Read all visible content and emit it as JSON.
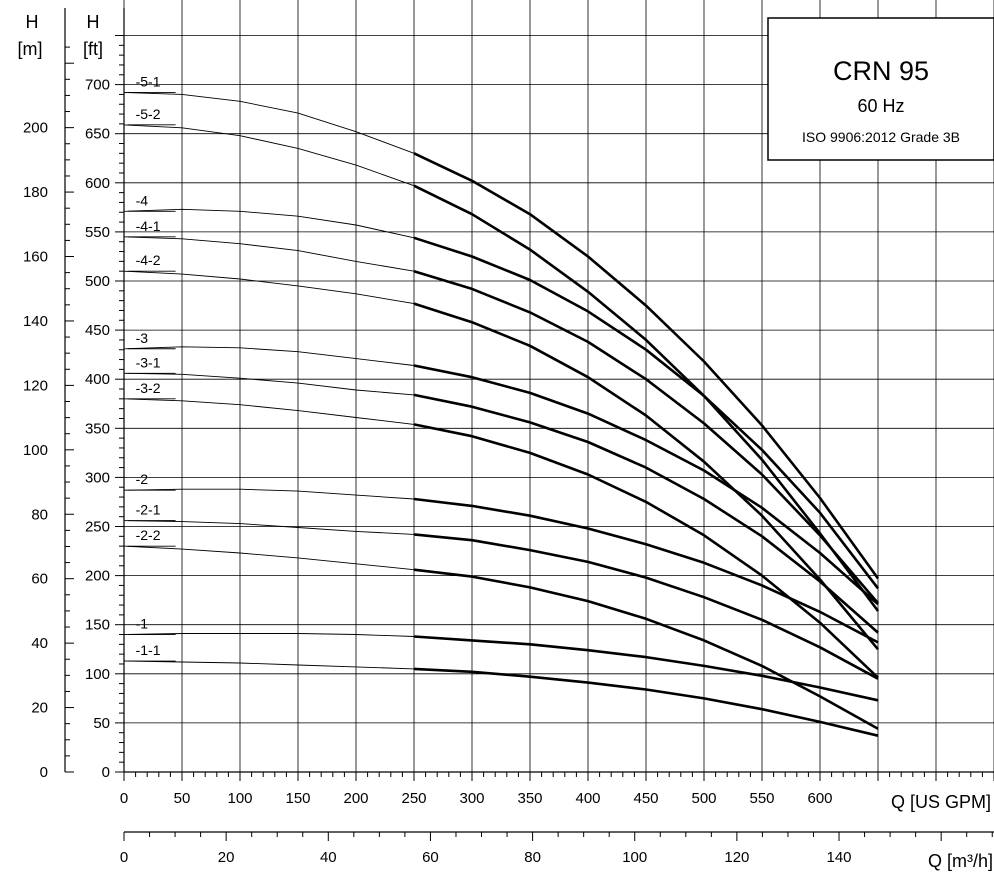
{
  "chart_data": {
    "type": "line",
    "title": "CRN 95",
    "subtitle": "60 Hz",
    "standard": "ISO 9906:2012 Grade 3B",
    "x_axes": {
      "primary": {
        "label": "Q [US GPM]",
        "range": [
          0,
          750
        ],
        "ticks": [
          0,
          50,
          100,
          150,
          200,
          250,
          300,
          350,
          400,
          450,
          500,
          550,
          600
        ]
      },
      "secondary": {
        "label": "Q [m³/h]",
        "range": [
          0,
          170.3
        ],
        "ticks": [
          0,
          20,
          40,
          60,
          80,
          100,
          120,
          140
        ]
      }
    },
    "y_axes": {
      "left_m": {
        "label_top": "H",
        "label_unit": "[m]",
        "range": [
          0,
          228.6
        ],
        "ticks": [
          0,
          20,
          40,
          60,
          80,
          100,
          120,
          140,
          160,
          180,
          200
        ]
      },
      "left_ft": {
        "label_top": "H",
        "label_unit": "[ft]",
        "range": [
          0,
          750
        ],
        "ticks": [
          0,
          50,
          100,
          150,
          200,
          250,
          300,
          350,
          400,
          450,
          500,
          550,
          600,
          650,
          700
        ]
      }
    },
    "grid": true,
    "thin_region_end_gpm": 250,
    "series": [
      {
        "name": "-5-1",
        "x": [
          0,
          50,
          100,
          150,
          200,
          250,
          300,
          350,
          400,
          450,
          500,
          550,
          600,
          650
        ],
        "y": [
          692,
          690,
          683,
          671,
          652,
          630,
          602,
          568,
          525,
          475,
          418,
          353,
          279,
          197
        ]
      },
      {
        "name": "-5-2",
        "x": [
          0,
          50,
          100,
          150,
          200,
          250,
          300,
          350,
          400,
          450,
          500,
          550,
          600,
          650
        ],
        "y": [
          659,
          656,
          648,
          635,
          618,
          597,
          568,
          532,
          489,
          440,
          383,
          318,
          243,
          164
        ]
      },
      {
        "name": "-4",
        "x": [
          0,
          50,
          100,
          150,
          200,
          250,
          300,
          350,
          400,
          450,
          500,
          550,
          600,
          650
        ],
        "y": [
          571,
          573,
          571,
          566,
          557,
          544,
          525,
          501,
          469,
          430,
          383,
          328,
          264,
          187
        ]
      },
      {
        "name": "-4-1",
        "x": [
          0,
          50,
          100,
          150,
          200,
          250,
          300,
          350,
          400,
          450,
          500,
          550,
          600,
          650
        ],
        "y": [
          545,
          543,
          538,
          531,
          520,
          510,
          492,
          468,
          438,
          400,
          355,
          303,
          241,
          172
        ]
      },
      {
        "name": "-4-2",
        "x": [
          0,
          50,
          100,
          150,
          200,
          250,
          300,
          350,
          400,
          450,
          500,
          550,
          600,
          650
        ],
        "y": [
          510,
          507,
          502,
          495,
          487,
          477,
          458,
          434,
          402,
          363,
          316,
          261,
          196,
          125
        ]
      },
      {
        "name": "-3",
        "x": [
          0,
          50,
          100,
          150,
          200,
          250,
          300,
          350,
          400,
          450,
          500,
          550,
          600,
          650
        ],
        "y": [
          431,
          433,
          432,
          428,
          421,
          414,
          402,
          386,
          365,
          338,
          307,
          269,
          223,
          171
        ]
      },
      {
        "name": "-3-1",
        "x": [
          0,
          50,
          100,
          150,
          200,
          250,
          300,
          350,
          400,
          450,
          500,
          550,
          600,
          650
        ],
        "y": [
          406,
          405,
          401,
          396,
          389,
          384,
          372,
          356,
          336,
          310,
          278,
          240,
          194,
          142
        ]
      },
      {
        "name": "-3-2",
        "x": [
          0,
          50,
          100,
          150,
          200,
          250,
          300,
          350,
          400,
          450,
          500,
          550,
          600,
          650
        ],
        "y": [
          380,
          378,
          374,
          368,
          361,
          354,
          342,
          325,
          303,
          275,
          241,
          200,
          152,
          96
        ]
      },
      {
        "name": "-2",
        "x": [
          0,
          50,
          100,
          150,
          200,
          250,
          300,
          350,
          400,
          450,
          500,
          550,
          600,
          650
        ],
        "y": [
          287,
          288,
          288,
          286,
          282,
          278,
          271,
          261,
          248,
          232,
          213,
          190,
          163,
          132
        ]
      },
      {
        "name": "-2-1",
        "x": [
          0,
          50,
          100,
          150,
          200,
          250,
          300,
          350,
          400,
          450,
          500,
          550,
          600,
          650
        ],
        "y": [
          256,
          255,
          253,
          249,
          245,
          242,
          236,
          226,
          214,
          198,
          178,
          155,
          127,
          95
        ]
      },
      {
        "name": "-2-2",
        "x": [
          0,
          50,
          100,
          150,
          200,
          250,
          300,
          350,
          400,
          450,
          500,
          550,
          600,
          650
        ],
        "y": [
          230,
          227,
          223,
          218,
          212,
          206,
          199,
          188,
          174,
          156,
          134,
          108,
          77,
          44
        ]
      },
      {
        "name": "-1",
        "x": [
          0,
          50,
          100,
          150,
          200,
          250,
          300,
          350,
          400,
          450,
          500,
          550,
          600,
          650
        ],
        "y": [
          140,
          141,
          141,
          141,
          140,
          138,
          134,
          130,
          124,
          117,
          108,
          98,
          86,
          73
        ]
      },
      {
        "name": "-1-1",
        "x": [
          0,
          50,
          100,
          150,
          200,
          250,
          300,
          350,
          400,
          450,
          500,
          550,
          600,
          650
        ],
        "y": [
          113,
          112,
          111,
          109,
          107,
          105,
          102,
          97,
          91,
          84,
          75,
          64,
          51,
          37
        ]
      }
    ]
  }
}
